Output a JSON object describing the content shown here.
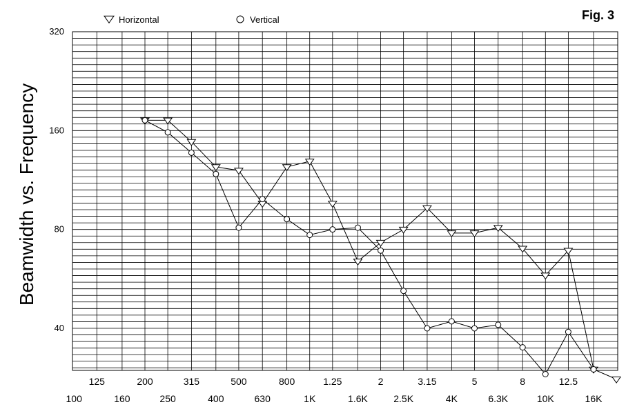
{
  "chart_data": {
    "type": "line",
    "title": "Beamwidth vs. Frequency",
    "figure_label": "Fig. 3",
    "xlabel": "",
    "ylabel": "",
    "x_scale": "log",
    "y_scale": "log",
    "x_ticks_upper": [
      {
        "value": 125,
        "label": "125"
      },
      {
        "value": 200,
        "label": "200"
      },
      {
        "value": 315,
        "label": "315"
      },
      {
        "value": 500,
        "label": "500"
      },
      {
        "value": 800,
        "label": "800"
      },
      {
        "value": 1250,
        "label": "1.25"
      },
      {
        "value": 2000,
        "label": "2"
      },
      {
        "value": 3150,
        "label": "3.15"
      },
      {
        "value": 5000,
        "label": "5"
      },
      {
        "value": 8000,
        "label": "8"
      },
      {
        "value": 12500,
        "label": "12.5"
      }
    ],
    "x_ticks_lower": [
      {
        "value": 100,
        "label": "100"
      },
      {
        "value": 160,
        "label": "160"
      },
      {
        "value": 250,
        "label": "250"
      },
      {
        "value": 400,
        "label": "400"
      },
      {
        "value": 630,
        "label": "630"
      },
      {
        "value": 1000,
        "label": "1K"
      },
      {
        "value": 1600,
        "label": "1.6K"
      },
      {
        "value": 2500,
        "label": "2.5K"
      },
      {
        "value": 4000,
        "label": "4K"
      },
      {
        "value": 6300,
        "label": "6.3K"
      },
      {
        "value": 10000,
        "label": "10K"
      },
      {
        "value": 16000,
        "label": "16K"
      }
    ],
    "y_ticks": [
      {
        "value": 40,
        "label": "40"
      },
      {
        "value": 80,
        "label": "80"
      },
      {
        "value": 160,
        "label": "160"
      },
      {
        "value": 320,
        "label": "320"
      }
    ],
    "ylim": [
      28,
      320
    ],
    "series": [
      {
        "name": "Horizontal",
        "marker": "triangle-down",
        "points": [
          {
            "x": 200,
            "y": 172
          },
          {
            "x": 250,
            "y": 172
          },
          {
            "x": 315,
            "y": 148
          },
          {
            "x": 400,
            "y": 124
          },
          {
            "x": 500,
            "y": 121
          },
          {
            "x": 630,
            "y": 96
          },
          {
            "x": 800,
            "y": 124
          },
          {
            "x": 1000,
            "y": 129
          },
          {
            "x": 1250,
            "y": 96
          },
          {
            "x": 1600,
            "y": 64
          },
          {
            "x": 2000,
            "y": 73
          },
          {
            "x": 2500,
            "y": 80
          },
          {
            "x": 3150,
            "y": 93
          },
          {
            "x": 4000,
            "y": 78
          },
          {
            "x": 5000,
            "y": 78
          },
          {
            "x": 6300,
            "y": 81
          },
          {
            "x": 8000,
            "y": 70
          },
          {
            "x": 10000,
            "y": 58
          },
          {
            "x": 12500,
            "y": 69
          },
          {
            "x": 16000,
            "y": 30
          },
          {
            "x": 20000,
            "y": 28
          }
        ]
      },
      {
        "name": "Vertical",
        "marker": "circle",
        "points": [
          {
            "x": 200,
            "y": 172
          },
          {
            "x": 250,
            "y": 158
          },
          {
            "x": 315,
            "y": 137
          },
          {
            "x": 400,
            "y": 118
          },
          {
            "x": 500,
            "y": 81
          },
          {
            "x": 630,
            "y": 99
          },
          {
            "x": 800,
            "y": 86
          },
          {
            "x": 1000,
            "y": 77
          },
          {
            "x": 1250,
            "y": 80
          },
          {
            "x": 1600,
            "y": 81
          },
          {
            "x": 2000,
            "y": 69
          },
          {
            "x": 2500,
            "y": 52
          },
          {
            "x": 3150,
            "y": 40
          },
          {
            "x": 4000,
            "y": 42
          },
          {
            "x": 5000,
            "y": 40
          },
          {
            "x": 6300,
            "y": 41
          },
          {
            "x": 8000,
            "y": 35
          },
          {
            "x": 10000,
            "y": 29
          },
          {
            "x": 12500,
            "y": 39
          },
          {
            "x": 16000,
            "y": 30
          }
        ]
      }
    ],
    "legend_position": "top-left",
    "grid": true
  }
}
